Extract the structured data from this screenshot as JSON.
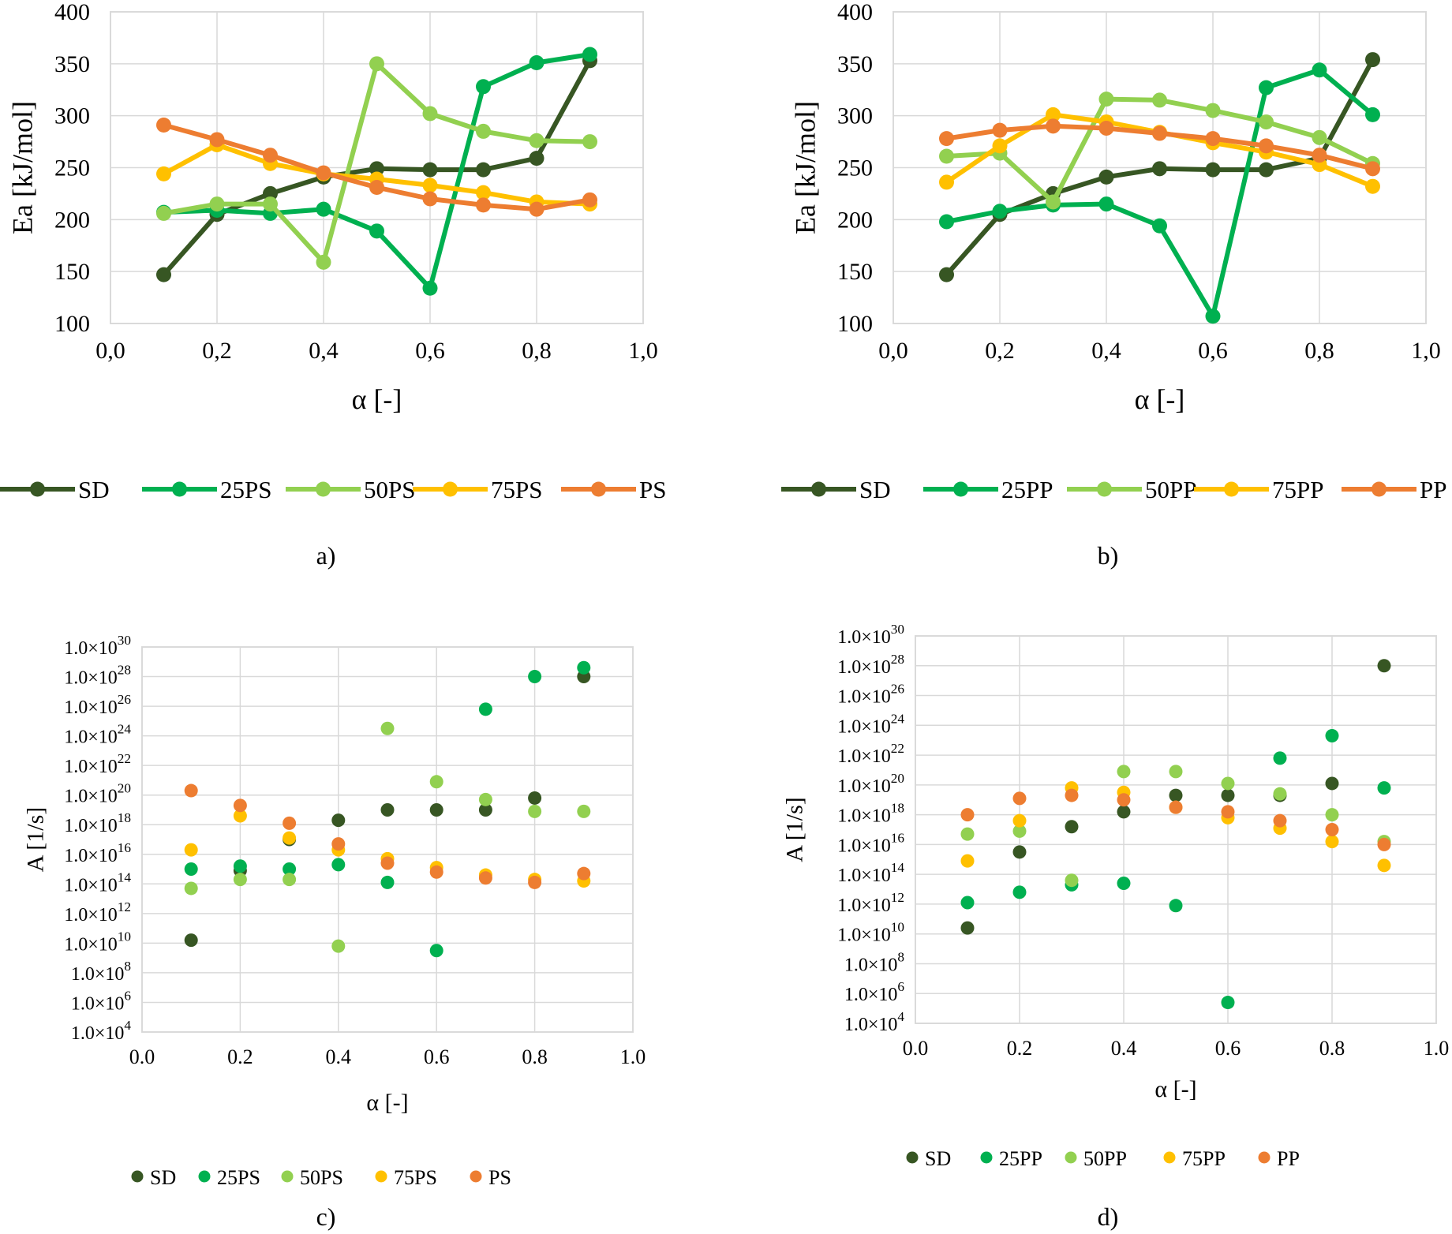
{
  "colors": {
    "SD": "#375623",
    "25": "#00B050",
    "50": "#92D050",
    "75": "#FFC000",
    "P": "#ED7D31",
    "grid": "#D9D9D9",
    "axis": "#BFBFBF",
    "text": "#000000"
  },
  "chart_data": [
    {
      "id": "a",
      "caption": "a)",
      "type": "line",
      "xlabel": "α [-]",
      "ylabel": "Ea [kJ/mol]",
      "xlim": [
        0,
        1
      ],
      "ylim": [
        100,
        400
      ],
      "xticks": [
        "0,0",
        "0,2",
        "0,4",
        "0,6",
        "0,8",
        "1,0"
      ],
      "yticks": [
        "100",
        "150",
        "200",
        "250",
        "300",
        "350",
        "400"
      ],
      "grid": true,
      "legend": "bottom",
      "x": [
        0.1,
        0.2,
        0.3,
        0.4,
        0.5,
        0.6,
        0.7,
        0.8,
        0.9
      ],
      "series": [
        {
          "name": "SD",
          "color_key": "SD",
          "values": [
            147,
            205,
            225,
            241,
            249,
            248,
            248,
            259,
            353
          ]
        },
        {
          "name": "25PS",
          "color_key": "25",
          "values": [
            207,
            209,
            206,
            210,
            189,
            134,
            328,
            351,
            359
          ]
        },
        {
          "name": "50PS",
          "color_key": "50",
          "values": [
            206,
            215,
            215,
            159,
            350,
            302,
            285,
            276,
            275
          ]
        },
        {
          "name": "75PS",
          "color_key": "75",
          "values": [
            244,
            272,
            254,
            244,
            239,
            233,
            226,
            217,
            215
          ]
        },
        {
          "name": "PS",
          "color_key": "P",
          "values": [
            291,
            277,
            262,
            245,
            231,
            220,
            214,
            210,
            219
          ]
        }
      ]
    },
    {
      "id": "b",
      "caption": "b)",
      "type": "line",
      "xlabel": "α [-]",
      "ylabel": "Ea [kJ/mol]",
      "xlim": [
        0,
        1
      ],
      "ylim": [
        100,
        400
      ],
      "xticks": [
        "0,0",
        "0,2",
        "0,4",
        "0,6",
        "0,8",
        "1,0"
      ],
      "yticks": [
        "100",
        "150",
        "200",
        "250",
        "300",
        "350",
        "400"
      ],
      "grid": true,
      "legend": "bottom",
      "x": [
        0.1,
        0.2,
        0.3,
        0.4,
        0.5,
        0.6,
        0.7,
        0.8,
        0.9
      ],
      "series": [
        {
          "name": "SD",
          "color_key": "SD",
          "values": [
            147,
            205,
            225,
            241,
            249,
            248,
            248,
            259,
            354
          ]
        },
        {
          "name": "25PP",
          "color_key": "25",
          "values": [
            198,
            208,
            214,
            215,
            194,
            107,
            327,
            344,
            301
          ]
        },
        {
          "name": "50PP",
          "color_key": "50",
          "values": [
            261,
            264,
            217,
            316,
            315,
            305,
            294,
            279,
            254
          ]
        },
        {
          "name": "75PP",
          "color_key": "75",
          "values": [
            236,
            271,
            301,
            294,
            284,
            274,
            265,
            253,
            232
          ]
        },
        {
          "name": "PP",
          "color_key": "P",
          "values": [
            278,
            286,
            290,
            288,
            283,
            278,
            271,
            262,
            249
          ]
        }
      ]
    },
    {
      "id": "c",
      "caption": "c)",
      "type": "scatter",
      "xlabel": "α [-]",
      "ylabel": "A [1/s]",
      "xlim": [
        0,
        1
      ],
      "ylim_log10": [
        4,
        30
      ],
      "xticks": [
        "0.0",
        "0.2",
        "0.4",
        "0.6",
        "0.8",
        "1.0"
      ],
      "ytick_mantissa": "1.0",
      "ytick_exponents": [
        4,
        6,
        8,
        10,
        12,
        14,
        16,
        18,
        20,
        22,
        24,
        26,
        28,
        30
      ],
      "grid": true,
      "legend": "bottom",
      "x": [
        0.1,
        0.2,
        0.3,
        0.4,
        0.5,
        0.6,
        0.7,
        0.8,
        0.9
      ],
      "series": [
        {
          "name": "SD",
          "color_key": "SD",
          "log10_values": [
            10.2,
            14.9,
            17.0,
            18.3,
            19.0,
            19.0,
            19.0,
            19.8,
            28.0
          ]
        },
        {
          "name": "25PS",
          "color_key": "25",
          "log10_values": [
            15.0,
            15.2,
            15.0,
            15.3,
            14.1,
            9.5,
            25.8,
            28.0,
            28.6
          ]
        },
        {
          "name": "50PS",
          "color_key": "50",
          "log10_values": [
            13.7,
            14.3,
            14.3,
            9.8,
            24.5,
            20.9,
            19.7,
            18.9,
            18.9
          ]
        },
        {
          "name": "75PS",
          "color_key": "75",
          "log10_values": [
            16.3,
            18.6,
            17.1,
            16.3,
            15.7,
            15.1,
            14.6,
            14.3,
            14.2
          ]
        },
        {
          "name": "PS",
          "color_key": "P",
          "log10_values": [
            20.3,
            19.3,
            18.1,
            16.7,
            15.4,
            14.8,
            14.4,
            14.1,
            14.7
          ]
        }
      ]
    },
    {
      "id": "d",
      "caption": "d)",
      "type": "scatter",
      "xlabel": "α [-]",
      "ylabel": "A [1/s]",
      "xlim": [
        0,
        1
      ],
      "ylim_log10": [
        4,
        30
      ],
      "xticks": [
        "0.0",
        "0.2",
        "0.4",
        "0.6",
        "0.8",
        "1.0"
      ],
      "ytick_mantissa": "1.0",
      "ytick_exponents": [
        4,
        6,
        8,
        10,
        12,
        14,
        16,
        18,
        20,
        22,
        24,
        26,
        28,
        30
      ],
      "grid": true,
      "legend": "bottom",
      "x": [
        0.1,
        0.2,
        0.3,
        0.4,
        0.5,
        0.6,
        0.7,
        0.8,
        0.9
      ],
      "series": [
        {
          "name": "SD",
          "color_key": "SD",
          "log10_values": [
            10.4,
            15.5,
            17.2,
            18.2,
            19.3,
            19.3,
            19.3,
            20.1,
            28.0
          ]
        },
        {
          "name": "25PP",
          "color_key": "25",
          "log10_values": [
            12.1,
            12.8,
            13.3,
            13.4,
            11.9,
            5.4,
            21.8,
            23.3,
            19.8
          ]
        },
        {
          "name": "50PP",
          "color_key": "50",
          "log10_values": [
            16.7,
            16.9,
            13.6,
            20.9,
            20.9,
            20.1,
            19.4,
            18.0,
            16.2
          ]
        },
        {
          "name": "75PP",
          "color_key": "75",
          "log10_values": [
            14.9,
            17.6,
            19.8,
            19.5,
            18.5,
            17.8,
            17.1,
            16.2,
            14.6
          ]
        },
        {
          "name": "PP",
          "color_key": "P",
          "log10_values": [
            18.0,
            19.1,
            19.3,
            19.0,
            18.5,
            18.2,
            17.6,
            17.0,
            16.0
          ]
        }
      ]
    }
  ]
}
